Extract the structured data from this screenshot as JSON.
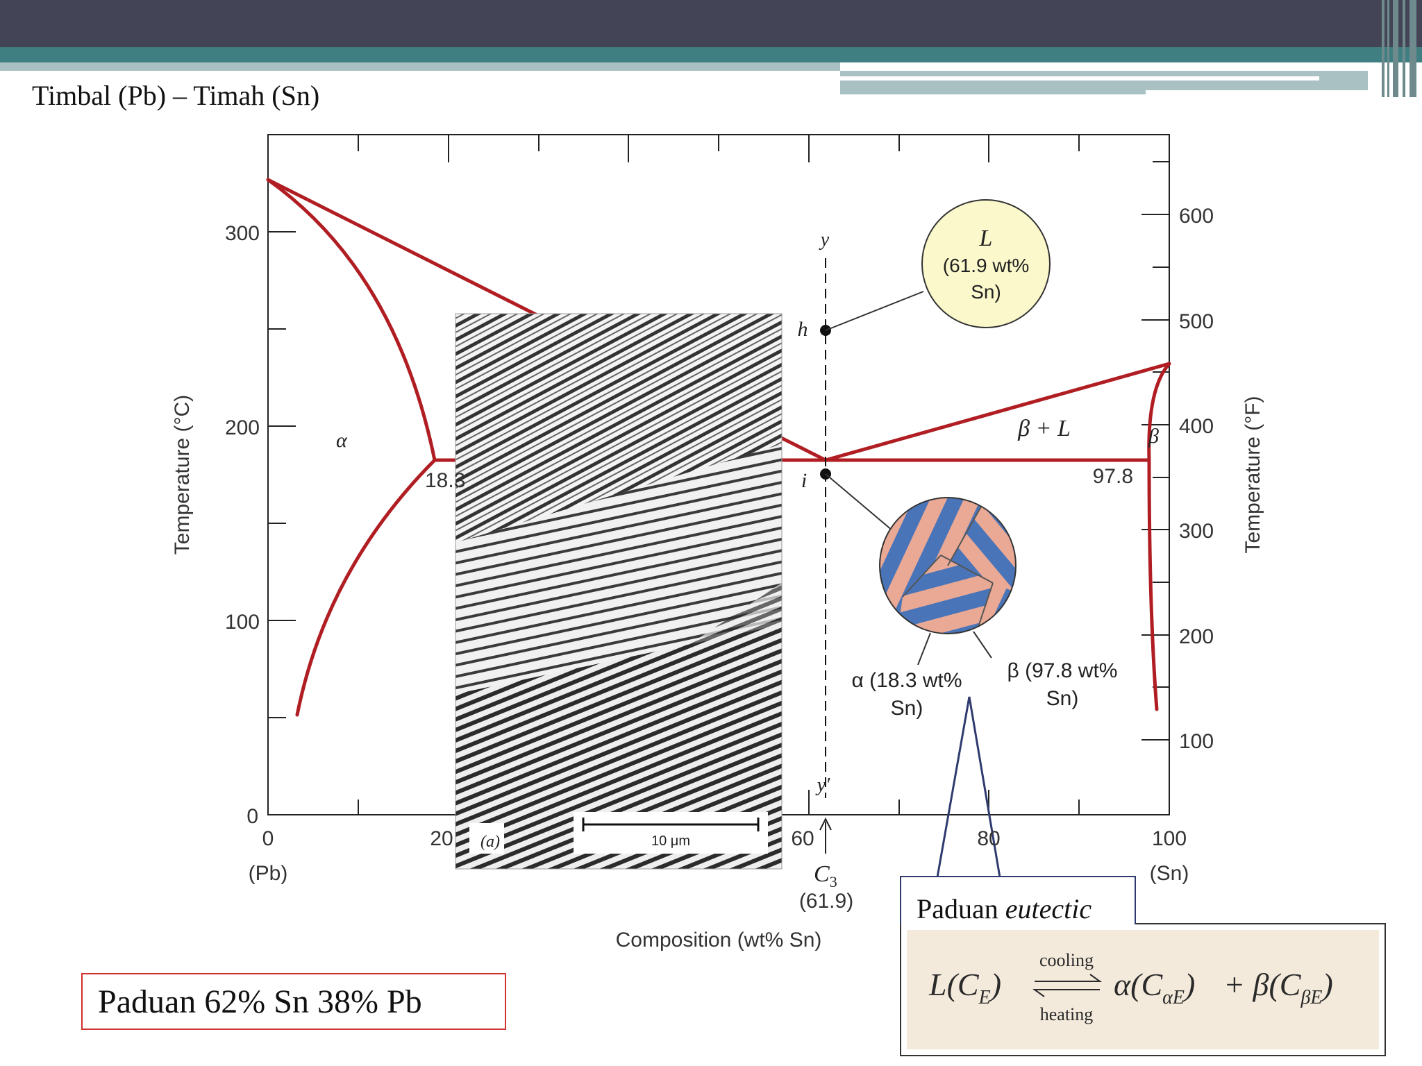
{
  "slide": {
    "title": "Timbal (Pb) – Timah (Sn)"
  },
  "phase_diagram": {
    "left_axis": {
      "ticks": [
        "0",
        "100",
        "200",
        "300"
      ],
      "label": "Temperature (°C)"
    },
    "right_axis": {
      "ticks": [
        "100",
        "200",
        "300",
        "400",
        "500",
        "600"
      ],
      "label": "Temperature (°F)"
    },
    "bottom_axis": {
      "ticks": [
        "0",
        "20",
        "60",
        "80",
        "100"
      ],
      "end_labels": [
        "(Pb)",
        "(Sn)"
      ],
      "label": "Composition (wt% Sn)"
    },
    "region_labels": {
      "alpha": "α",
      "beta_plus_l": "β + L",
      "beta": "β"
    },
    "values": {
      "alpha_limit": "18.3",
      "beta_limit": "97.8",
      "c3": "C",
      "c3_sub": "3",
      "c3_value": "(61.9)"
    },
    "line_labels": {
      "y": "y",
      "y_prime": "y′",
      "h": "h",
      "i": "i"
    },
    "liquid_bubble": [
      "L",
      "(61.9 wt%",
      "Sn)"
    ],
    "alpha_note": [
      "α (18.3 wt%",
      "Sn)"
    ],
    "beta_note": [
      "β (97.8 wt%",
      "Sn)"
    ]
  },
  "micrograph": {
    "label": "(a)",
    "scale": "10 μm"
  },
  "callouts": {
    "alloy": "Paduan 62% Sn 38% Pb",
    "eutectic_prefix": "Paduan ",
    "eutectic_word": "eutectic"
  },
  "reaction": {
    "lhs": "L(C",
    "lhs_sub": "E",
    "cooling": "cooling",
    "heating": "heating",
    "rhs": "α(C",
    "rhs_sub": "αE",
    "plus": "+ β(C",
    "plus_sub": "βE"
  },
  "colors": {
    "phase_line": "#b01e23",
    "bubble": "#fbf8cc",
    "lamella_a": "#e9a995",
    "lamella_b": "#4a74b8"
  },
  "chart_data": {
    "type": "phase_diagram",
    "x_range": [
      0,
      100
    ],
    "y_range_celsius": [
      0,
      350
    ],
    "invariant_points": [
      {
        "name": "melting_pb",
        "x": 0,
        "y": 327
      },
      {
        "name": "alpha_limit",
        "x": 18.3,
        "y": 183
      },
      {
        "name": "eutectic",
        "x": 61.9,
        "y": 183
      },
      {
        "name": "beta_limit",
        "x": 97.8,
        "y": 183
      },
      {
        "name": "melting_sn",
        "x": 100,
        "y": 232
      }
    ],
    "liquidus": [
      [
        0,
        327
      ],
      [
        61.9,
        183
      ],
      [
        100,
        232
      ]
    ],
    "solidus_alpha": [
      [
        0,
        327
      ],
      [
        18.3,
        183
      ]
    ],
    "solvus_alpha": [
      [
        18.3,
        183
      ],
      [
        3.5,
        50
      ]
    ],
    "solidus_beta": [
      [
        100,
        232
      ],
      [
        97.8,
        183
      ]
    ],
    "solvus_beta": [
      [
        97.8,
        183
      ],
      [
        98.5,
        55
      ]
    ],
    "eutectic_isotherm": [
      [
        18.3,
        183
      ],
      [
        97.8,
        183
      ]
    ],
    "vertical_line_composition": 61.9,
    "point_h_temperature": 250,
    "point_i_temperature": 180
  }
}
